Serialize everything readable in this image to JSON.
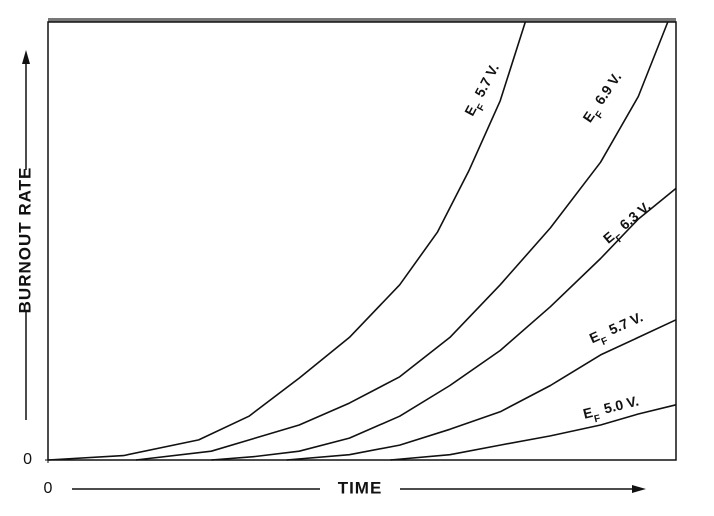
{
  "chart_data": {
    "type": "line",
    "label_symbol": "E",
    "label_subscript": "F",
    "y_axis_label": "BURNOUT RATE",
    "x_axis_label": "TIME",
    "xlim": [
      0,
      100
    ],
    "ylim": [
      0,
      100
    ],
    "xticks": [
      0
    ],
    "yticks": [
      0
    ],
    "color": "#111111",
    "series": [
      {
        "name": "5.7 V.",
        "x": [
          0,
          12,
          24,
          32,
          40,
          48,
          56,
          62,
          67,
          72,
          76
        ],
        "values": [
          0,
          1,
          4.6,
          10,
          18.7,
          28,
          40,
          52,
          66,
          82,
          100
        ]
      },
      {
        "name": "6.9 V.",
        "x": [
          14,
          26,
          40,
          48,
          56,
          64,
          72,
          80,
          88,
          94,
          98.7
        ],
        "values": [
          0,
          2,
          8,
          13,
          19,
          28,
          40,
          53,
          68,
          83,
          100
        ]
      },
      {
        "name": "6.3 V.",
        "x": [
          26,
          33,
          40,
          48,
          56,
          64,
          72,
          80,
          88,
          94,
          100
        ],
        "values": [
          0,
          0.8,
          2,
          5,
          10,
          17,
          25,
          35,
          46,
          55,
          62
        ]
      },
      {
        "name": "5.7 V.",
        "x": [
          38,
          48,
          56,
          64,
          72,
          80,
          88,
          94,
          100
        ],
        "values": [
          0,
          1.2,
          3.4,
          7,
          11,
          17,
          24,
          28,
          32
        ]
      },
      {
        "name": "5.0 V.",
        "x": [
          54.5,
          64,
          72,
          80,
          88,
          94,
          100
        ],
        "values": [
          0,
          1.2,
          3.4,
          5.5,
          8,
          10.5,
          12.6
        ]
      }
    ]
  }
}
